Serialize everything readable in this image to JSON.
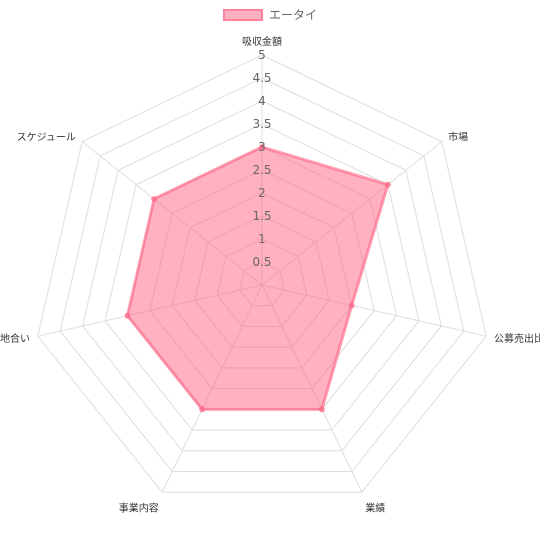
{
  "chart_data": {
    "type": "radar",
    "categories": [
      "吸収金額",
      "市場",
      "公募売出比",
      "業績",
      "事業内容",
      "地合い",
      "スケジュール"
    ],
    "series": [
      {
        "name": "エータイ",
        "values": [
          3,
          3.5,
          2,
          3,
          3,
          3,
          3
        ]
      }
    ],
    "rlim": [
      0,
      5
    ],
    "ticks": [
      "0.5",
      "1",
      "1.5",
      "2",
      "2.5",
      "3",
      "3.5",
      "4",
      "4.5",
      "5"
    ],
    "legend": "top",
    "colors": {
      "fill": "#ff6384",
      "stroke": "#ff6384",
      "grid": "#dddddd",
      "label": "#666666"
    }
  }
}
